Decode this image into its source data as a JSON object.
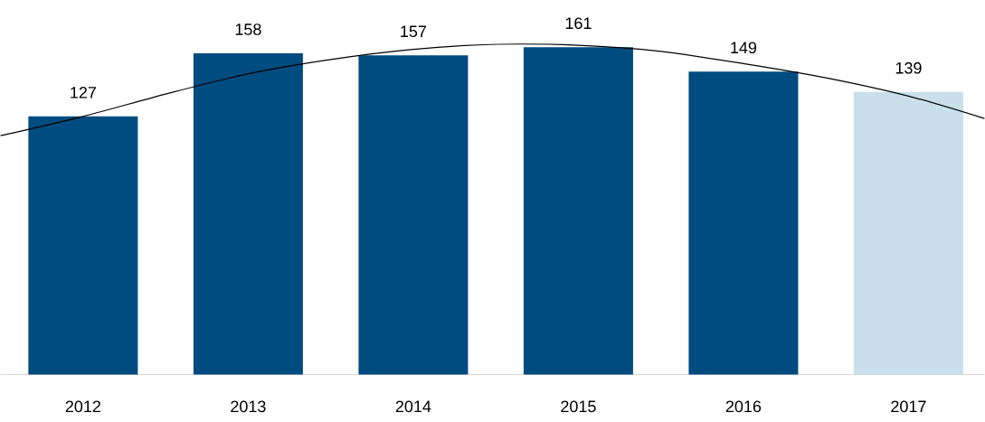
{
  "chart_data": {
    "type": "bar",
    "x": [
      2012,
      2013,
      2014,
      2015,
      2016,
      2017
    ],
    "xlim": [
      2011.5,
      2017.46
    ],
    "xticks": [
      2012,
      2013,
      2014,
      2015,
      2016,
      2017
    ],
    "series": [
      {
        "values": [
          127,
          158,
          157,
          161,
          149,
          139
        ],
        "value_labels": [
          "127",
          "158",
          "157",
          "161",
          "149",
          "139"
        ],
        "colors": [
          "#004b80",
          "#004b80",
          "#004b80",
          "#004b80",
          "#004b80",
          "#c9dfec"
        ]
      },
      {
        "type": "line",
        "color": "#000000",
        "x": [
          2011.5,
          2012,
          2012.5,
          2013,
          2013.5,
          2014,
          2014.5,
          2015,
          2015.5,
          2016,
          2016.5,
          2017,
          2017.46
        ],
        "values": [
          117.5,
          127,
          138,
          148,
          155,
          160,
          162.5,
          162,
          159,
          153,
          146,
          137,
          126
        ]
      }
    ]
  }
}
